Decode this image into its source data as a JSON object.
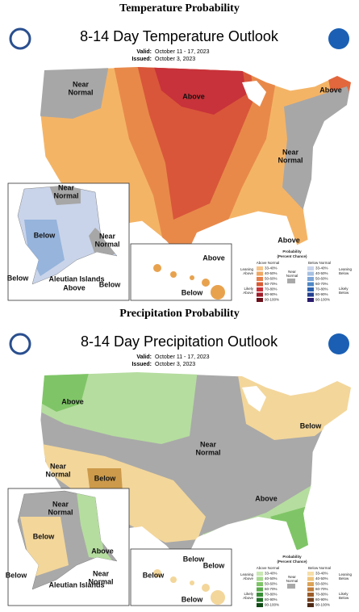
{
  "panels": [
    {
      "heading": "Temperature Probability",
      "title": "8-14 Day Temperature Outlook",
      "valid_label": "Valid:",
      "valid": "October 11 - 17, 2023",
      "issued_label": "Issued:",
      "issued": "October 3, 2023",
      "labels": [
        [
          "Near",
          "Normal"
        ],
        [
          "Above"
        ],
        [
          "Above"
        ],
        [
          "Near",
          "Normal"
        ],
        [
          "Near",
          "Normal"
        ],
        [
          "Below"
        ],
        [
          "Near",
          "Normal"
        ],
        [
          "Below"
        ],
        [
          "Aleutian Islands"
        ],
        [
          "Above"
        ],
        [
          "Below"
        ],
        [
          "Above"
        ],
        [
          "Below"
        ],
        [
          "Above"
        ]
      ],
      "legend": {
        "title": [
          "Probability",
          "(Percent Chance)"
        ],
        "above": "Above Normal",
        "below": "Below Normal",
        "leaning_above": [
          "Leaning",
          "Above"
        ],
        "likely_above": [
          "Likely",
          "Above"
        ],
        "near": [
          "Near",
          "Normal"
        ],
        "leaning_below": [
          "Leaning",
          "Below"
        ],
        "likely_below": [
          "Likely",
          "Below"
        ],
        "bins": [
          "33-40%",
          "40-50%",
          "50-60%",
          "60-70%",
          "70-80%",
          "80-90%",
          "90-100%"
        ]
      }
    },
    {
      "heading": "Precipitation Probability",
      "title": "8-14 Day Precipitation Outlook",
      "valid_label": "Valid:",
      "valid": "October 11 - 17, 2023",
      "issued_label": "Issued:",
      "issued": "October 3, 2023",
      "labels": [
        [
          "Above"
        ],
        [
          "Near",
          "Normal"
        ],
        [
          "Below"
        ],
        [
          "Near",
          "Normal"
        ],
        [
          "Below"
        ],
        [
          "Above"
        ],
        [
          "Near",
          "Normal"
        ],
        [
          "Below"
        ],
        [
          "Above"
        ],
        [
          "Below"
        ],
        [
          "Aleutian Islands"
        ],
        [
          "Near",
          "Normal"
        ],
        [
          "Below"
        ],
        [
          "Below"
        ],
        [
          "Below"
        ],
        [
          "Below"
        ]
      ],
      "legend": {
        "title": [
          "Probability",
          "(Percent Chance)"
        ],
        "above": "Above Normal",
        "below": "Below Normal",
        "leaning_above": [
          "Leaning",
          "Above"
        ],
        "likely_above": [
          "Likely",
          "Above"
        ],
        "near": [
          "Near",
          "Normal"
        ],
        "leaning_below": [
          "Leaning",
          "Below"
        ],
        "likely_below": [
          "Likely",
          "Below"
        ],
        "bins": [
          "33-40%",
          "40-50%",
          "50-60%",
          "60-70%",
          "70-80%",
          "80-90%",
          "90-100%"
        ]
      }
    }
  ]
}
